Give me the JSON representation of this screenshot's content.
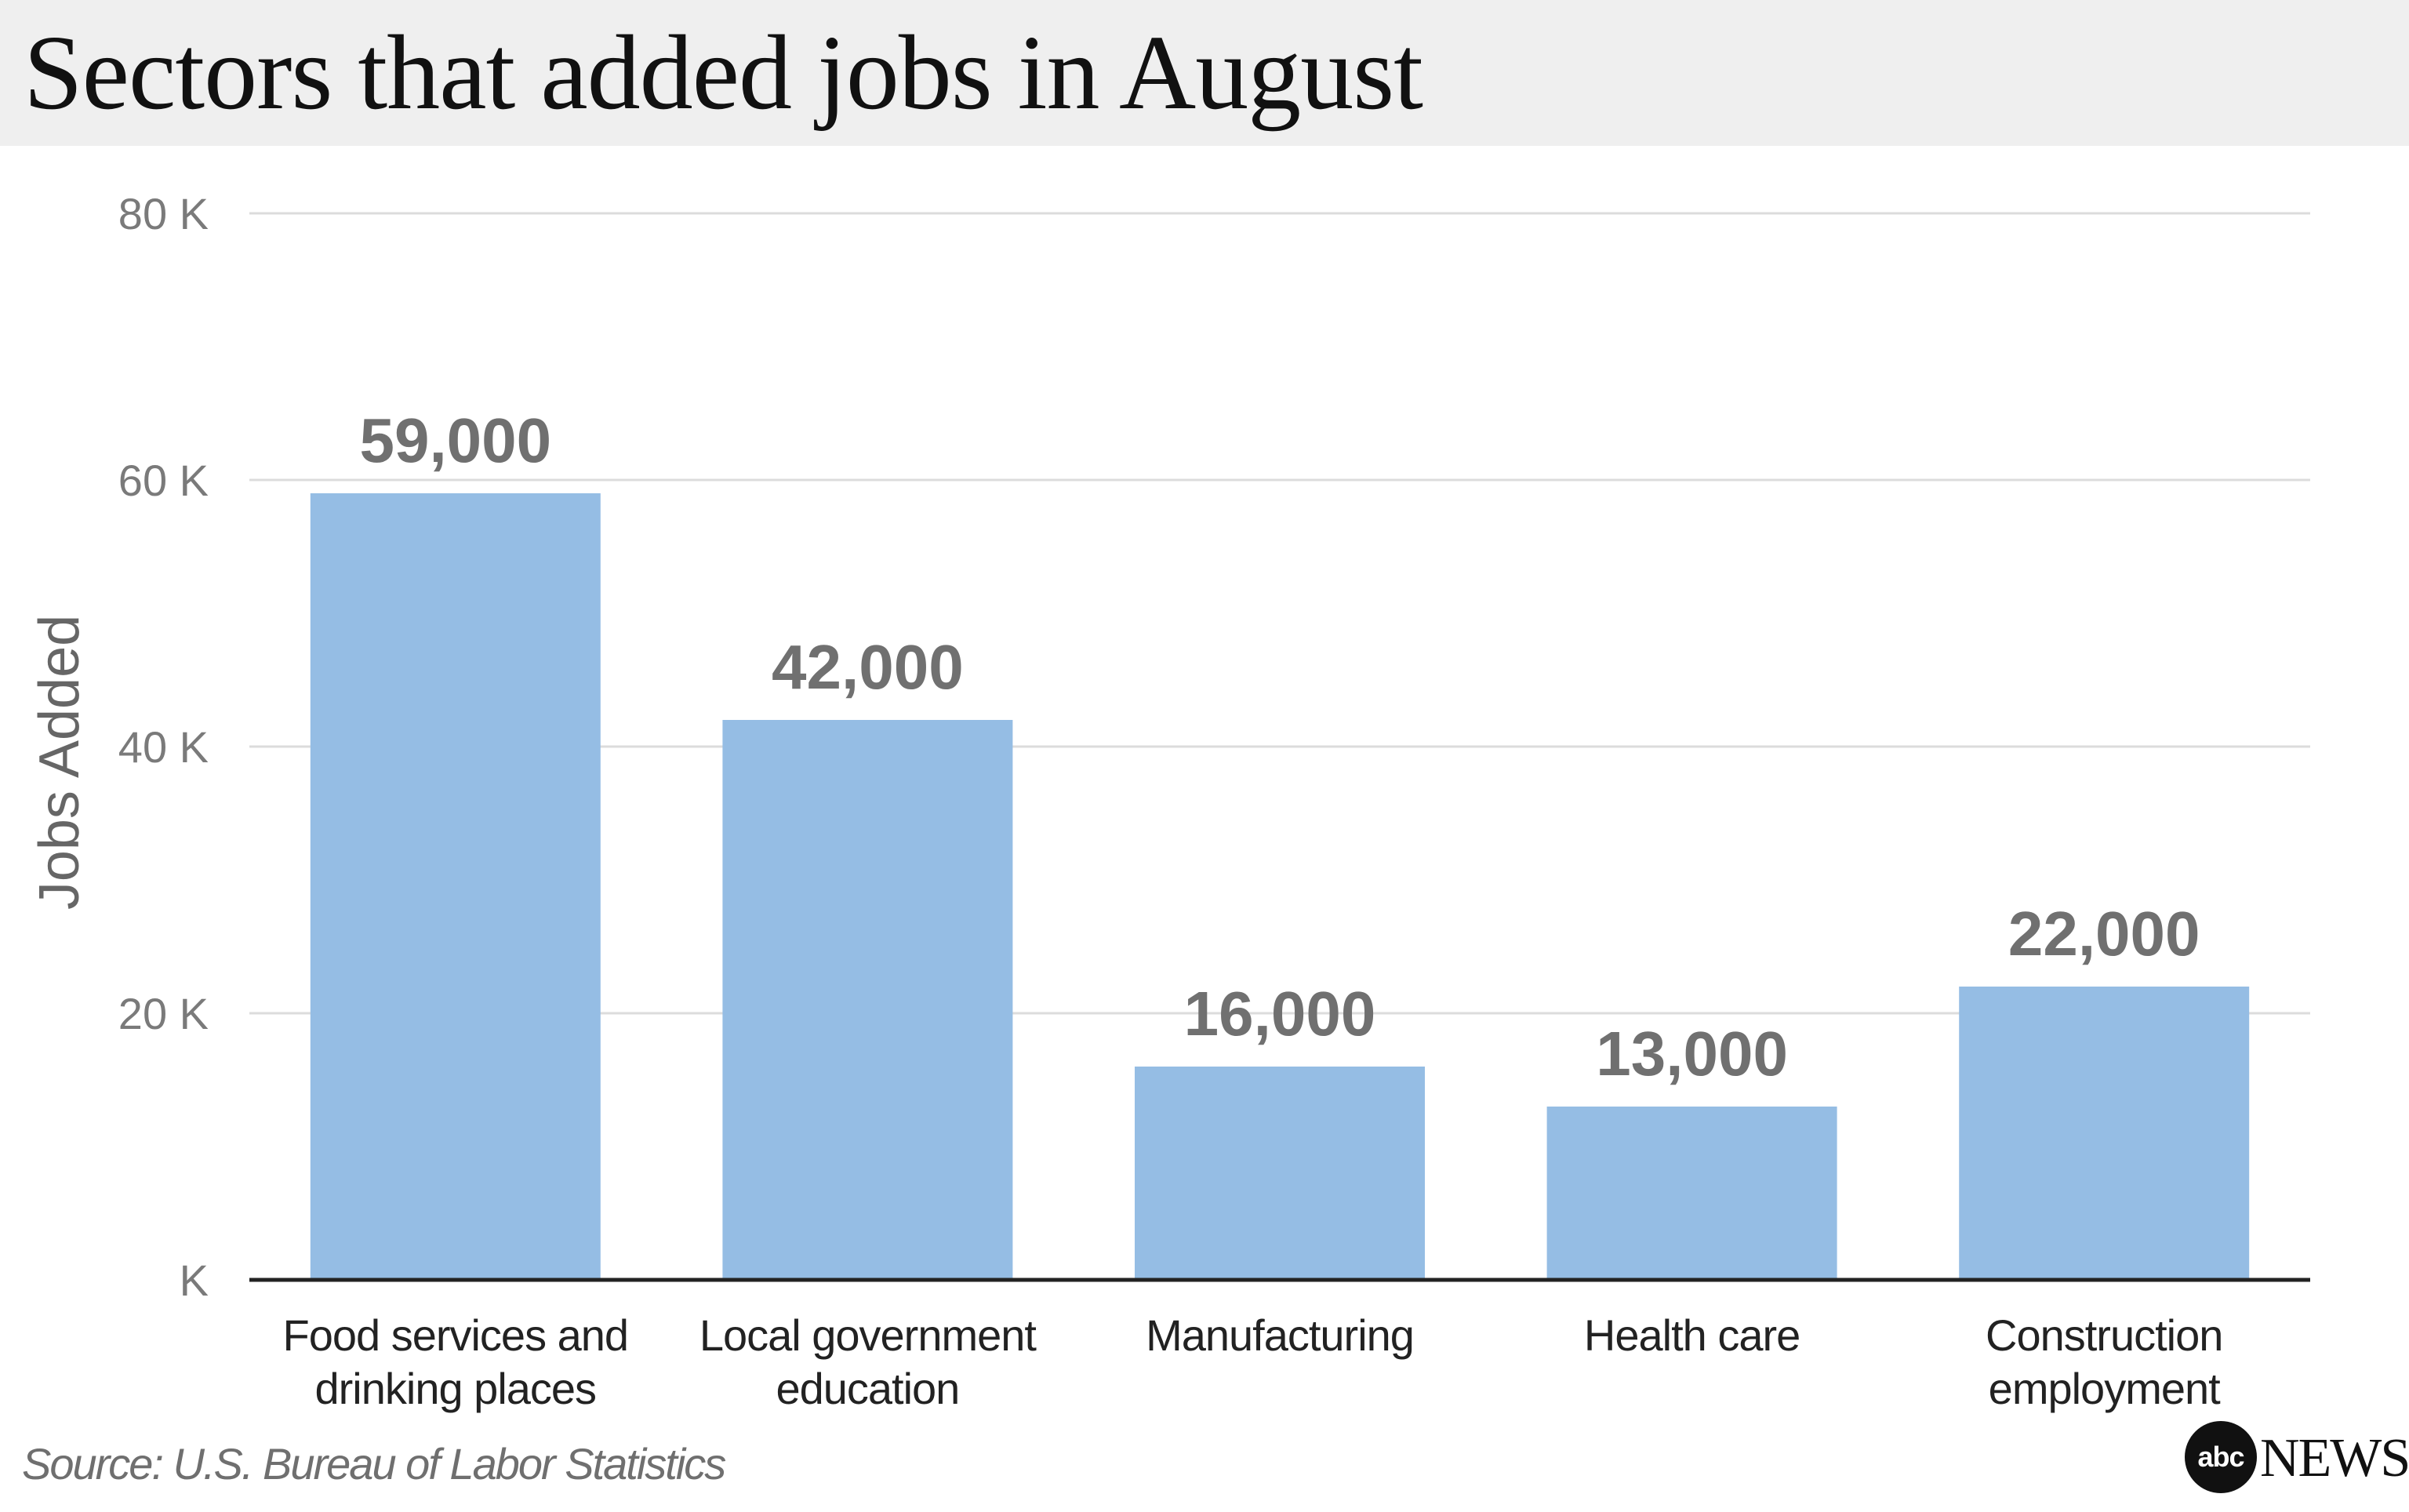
{
  "title": "Sectors that added jobs in August",
  "source": "Source: U.S. Bureau of Labor Statistics",
  "logo": {
    "badge": "abc",
    "word": "NEWS"
  },
  "colors": {
    "bar": "#95bde4",
    "grid": "#dcdcdc",
    "baseline": "#222222",
    "tick_text": "#7a7a7a",
    "value_label": "#707070",
    "category_text": "#222222",
    "ylabel_text": "#666666"
  },
  "chart_data": {
    "type": "bar",
    "title": "Sectors that added jobs in August",
    "xlabel": "",
    "ylabel": "Jobs Added",
    "ylim": [
      0,
      80000
    ],
    "yticks": [
      {
        "value": 0,
        "label": "K"
      },
      {
        "value": 20000,
        "label": "20 K"
      },
      {
        "value": 40000,
        "label": "40 K"
      },
      {
        "value": 60000,
        "label": "60 K"
      },
      {
        "value": 80000,
        "label": "80 K"
      }
    ],
    "grid": true,
    "categories": [
      [
        "Food services and",
        "drinking places"
      ],
      [
        "Local government",
        "education"
      ],
      [
        "Manufacturing"
      ],
      [
        "Health care"
      ],
      [
        "Construction",
        "employment"
      ]
    ],
    "values": [
      59000,
      42000,
      16000,
      13000,
      22000
    ],
    "data_labels": [
      "59,000",
      "42,000",
      "16,000",
      "13,000",
      "22,000"
    ]
  }
}
